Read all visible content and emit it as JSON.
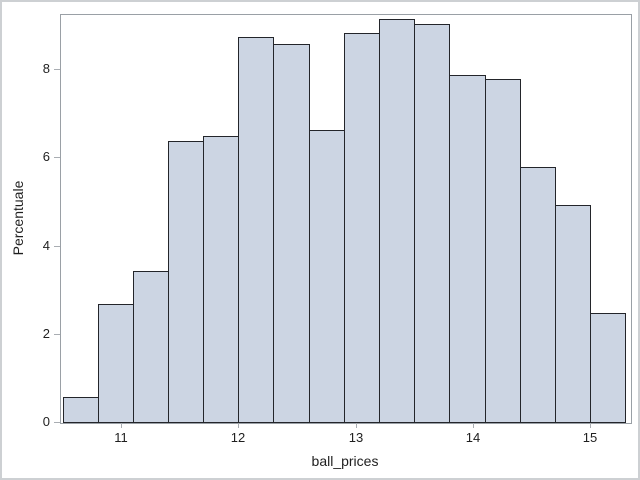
{
  "chart_data": {
    "type": "bar",
    "subtype": "histogram",
    "title": "",
    "xlabel": "ball_prices",
    "ylabel": "Percentuale",
    "bin_start": 10.5,
    "bin_width": 0.3,
    "bin_midpoints": [
      10.65,
      10.95,
      11.25,
      11.55,
      11.85,
      12.15,
      12.45,
      12.75,
      13.05,
      13.35,
      13.65,
      13.95,
      14.25,
      14.55,
      14.85,
      15.15
    ],
    "values": [
      0.6,
      2.7,
      3.45,
      6.4,
      6.5,
      8.75,
      8.6,
      6.65,
      8.85,
      9.15,
      9.05,
      7.9,
      7.8,
      5.8,
      4.95,
      2.5
    ],
    "x_ticks": [
      11,
      12,
      13,
      14,
      15
    ],
    "y_ticks": [
      0,
      2,
      4,
      6,
      8
    ],
    "xlim": [
      10.48,
      15.34
    ],
    "ylim": [
      0,
      9.25
    ],
    "grid": false,
    "legend": false,
    "colors": {
      "bar_fill": "#ccd5e3",
      "bar_border": "#23252a",
      "axis_frame": "#9aa0a6",
      "tick_mark": "#a9adb2",
      "text": "#1f1f1f",
      "background": "#ffffff",
      "figure_border": "#cdd0d3"
    }
  }
}
